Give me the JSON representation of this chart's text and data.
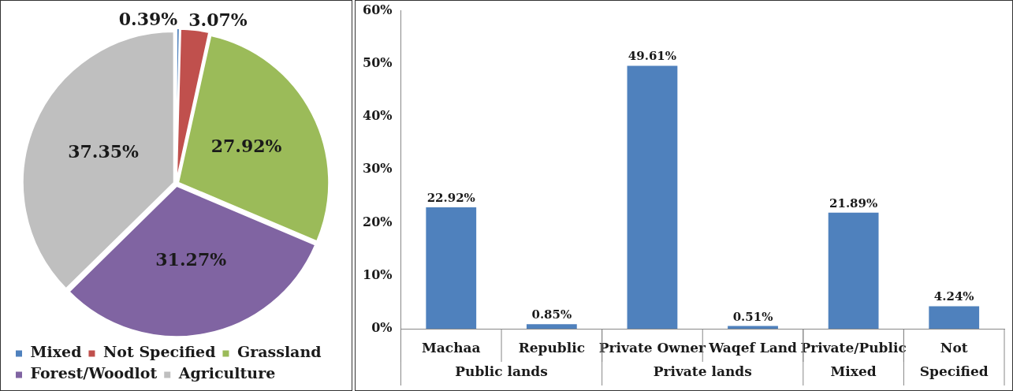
{
  "chart_data": [
    {
      "type": "pie",
      "categories": [
        "Mixed",
        "Not Specified",
        "Grassland",
        "Forest/Woodlot",
        "Agriculture"
      ],
      "values": [
        0.39,
        3.07,
        27.92,
        31.27,
        37.35
      ],
      "colors": [
        "#4f81bd",
        "#c0504d",
        "#9bbb59",
        "#8064a2",
        "#bfbfbf"
      ],
      "value_labels": [
        "0.39%",
        "3.07%",
        "27.92%",
        "31.27%",
        "37.35%"
      ],
      "legend": "bottom"
    },
    {
      "type": "bar",
      "categories": [
        "Machaa",
        "Republic",
        "Private Owner",
        "Waqef Land",
        "Private/Public",
        "Not"
      ],
      "values": [
        22.92,
        0.85,
        49.61,
        0.51,
        21.89,
        4.24
      ],
      "color": "#4f81bd",
      "value_labels": [
        "22.92%",
        "0.85%",
        "49.61%",
        "0.51%",
        "21.89%",
        "4.24%"
      ],
      "ylim": [
        0,
        60
      ],
      "yticks": [
        {
          "value": 0,
          "label": "0%"
        },
        {
          "value": 10,
          "label": "10%"
        },
        {
          "value": 20,
          "label": "20%"
        },
        {
          "value": 30,
          "label": "30%"
        },
        {
          "value": 40,
          "label": "40%"
        },
        {
          "value": 50,
          "label": "50%"
        },
        {
          "value": 60,
          "label": "60%"
        }
      ],
      "grid": false,
      "legend": false,
      "annotations": [
        "Public lands",
        "Private lands",
        "Mixed",
        "Specified"
      ]
    }
  ]
}
